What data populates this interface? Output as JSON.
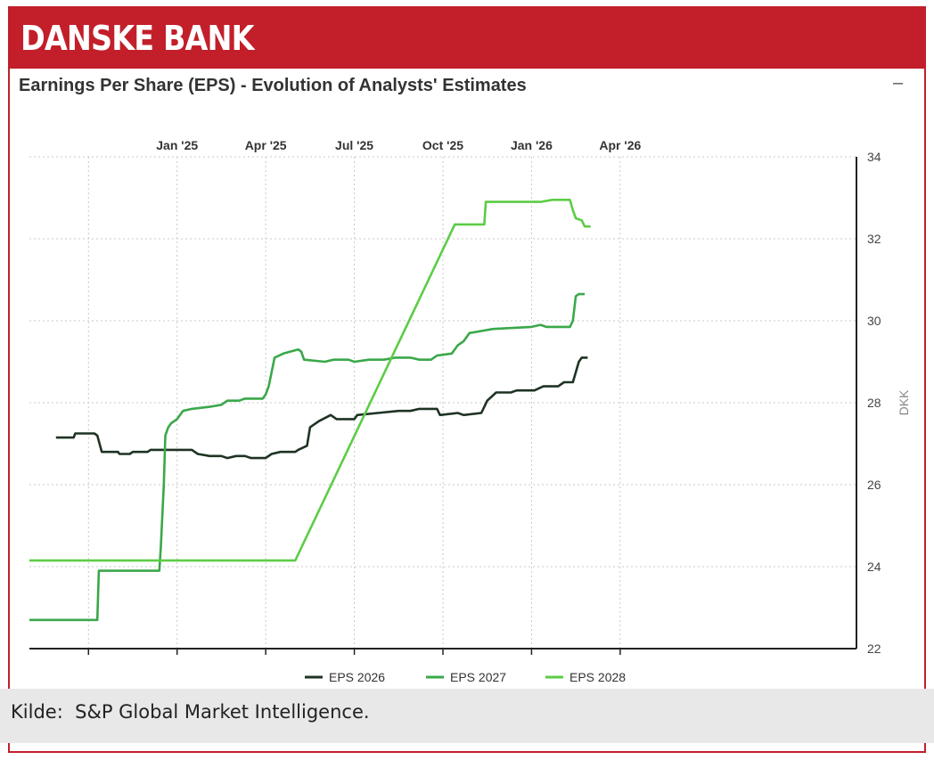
{
  "header": {
    "title": "DANSKE BANK"
  },
  "footer": {
    "source": "Kilde:  S&P Global Market Intelligence."
  },
  "colors": {
    "brand": "#c21f2a",
    "eps2026": "#1e3323",
    "eps2027": "#3aa84a",
    "eps2028": "#5ccc46"
  },
  "icons": {
    "minimize": "minimize-icon"
  },
  "chart_data": {
    "type": "line",
    "title": "Earnings Per Share (EPS) - Evolution of Analysts' Estimates",
    "ylabel": "DKK",
    "ylim": [
      22,
      34
    ],
    "yticks": [
      22,
      24,
      26,
      28,
      30,
      32,
      34
    ],
    "xlim": [
      -2.5,
      25.5
    ],
    "xticks": [
      {
        "label": "Jan '25",
        "at": 2.5
      },
      {
        "label": "Apr '25",
        "at": 5.5
      },
      {
        "label": "Jul '25",
        "at": 8.5
      },
      {
        "label": "Oct '25",
        "at": 11.5
      },
      {
        "label": "Jan '26",
        "at": 14.5
      },
      {
        "label": "Apr '26",
        "at": 17.5
      }
    ],
    "xgrid": [
      -0.5,
      2.5,
      5.5,
      8.5,
      11.5,
      14.5,
      17.5
    ],
    "legend_position": "bottom-center",
    "series": [
      {
        "name": "EPS 2026",
        "color": "#1e3323",
        "points": [
          [
            -1.6,
            27.15
          ],
          [
            -1.0,
            27.15
          ],
          [
            -0.95,
            27.25
          ],
          [
            -0.3,
            27.25
          ],
          [
            -0.2,
            27.2
          ],
          [
            -0.05,
            26.8
          ],
          [
            0.5,
            26.8
          ],
          [
            0.55,
            26.75
          ],
          [
            0.9,
            26.75
          ],
          [
            1.0,
            26.8
          ],
          [
            1.5,
            26.8
          ],
          [
            1.6,
            26.85
          ],
          [
            2.5,
            26.85
          ],
          [
            2.7,
            26.85
          ],
          [
            3.0,
            26.85
          ],
          [
            3.2,
            26.75
          ],
          [
            3.6,
            26.7
          ],
          [
            4.0,
            26.7
          ],
          [
            4.2,
            26.65
          ],
          [
            4.5,
            26.7
          ],
          [
            4.8,
            26.7
          ],
          [
            5.0,
            26.65
          ],
          [
            5.5,
            26.65
          ],
          [
            5.7,
            26.75
          ],
          [
            6.0,
            26.8
          ],
          [
            6.5,
            26.8
          ],
          [
            6.6,
            26.85
          ],
          [
            6.9,
            26.95
          ],
          [
            7.0,
            27.4
          ],
          [
            7.3,
            27.55
          ],
          [
            7.7,
            27.7
          ],
          [
            7.9,
            27.6
          ],
          [
            8.5,
            27.6
          ],
          [
            8.6,
            27.7
          ],
          [
            9.3,
            27.75
          ],
          [
            10.0,
            27.8
          ],
          [
            10.4,
            27.8
          ],
          [
            10.7,
            27.85
          ],
          [
            11.3,
            27.85
          ],
          [
            11.4,
            27.7
          ],
          [
            12.0,
            27.75
          ],
          [
            12.2,
            27.7
          ],
          [
            12.8,
            27.75
          ],
          [
            13.0,
            28.05
          ],
          [
            13.3,
            28.25
          ],
          [
            13.8,
            28.25
          ],
          [
            14.0,
            28.3
          ],
          [
            14.6,
            28.3
          ],
          [
            14.9,
            28.4
          ],
          [
            15.4,
            28.4
          ],
          [
            15.6,
            28.5
          ],
          [
            15.9,
            28.5
          ],
          [
            16.1,
            29.0
          ],
          [
            16.2,
            29.1
          ],
          [
            16.4,
            29.1
          ]
        ]
      },
      {
        "name": "EPS 2027",
        "color": "#3aa84a",
        "points": [
          [
            -2.5,
            22.7
          ],
          [
            -0.2,
            22.7
          ],
          [
            -0.15,
            23.9
          ],
          [
            1.9,
            23.9
          ],
          [
            1.95,
            24.5
          ],
          [
            2.05,
            26.0
          ],
          [
            2.1,
            27.2
          ],
          [
            2.2,
            27.4
          ],
          [
            2.3,
            27.5
          ],
          [
            2.5,
            27.6
          ],
          [
            2.7,
            27.8
          ],
          [
            3.0,
            27.85
          ],
          [
            3.6,
            27.9
          ],
          [
            4.0,
            27.95
          ],
          [
            4.2,
            28.05
          ],
          [
            4.6,
            28.05
          ],
          [
            4.8,
            28.1
          ],
          [
            5.4,
            28.1
          ],
          [
            5.5,
            28.2
          ],
          [
            5.6,
            28.4
          ],
          [
            5.7,
            28.75
          ],
          [
            5.8,
            29.1
          ],
          [
            6.1,
            29.2
          ],
          [
            6.6,
            29.3
          ],
          [
            6.7,
            29.25
          ],
          [
            6.8,
            29.05
          ],
          [
            7.5,
            29.0
          ],
          [
            7.8,
            29.05
          ],
          [
            8.3,
            29.05
          ],
          [
            8.5,
            29.0
          ],
          [
            9.0,
            29.05
          ],
          [
            9.5,
            29.05
          ],
          [
            9.9,
            29.1
          ],
          [
            10.4,
            29.1
          ],
          [
            10.7,
            29.05
          ],
          [
            11.1,
            29.05
          ],
          [
            11.3,
            29.15
          ],
          [
            11.8,
            29.2
          ],
          [
            12.0,
            29.4
          ],
          [
            12.2,
            29.5
          ],
          [
            12.4,
            29.7
          ],
          [
            12.8,
            29.75
          ],
          [
            13.2,
            29.8
          ],
          [
            14.5,
            29.85
          ],
          [
            14.8,
            29.9
          ],
          [
            15.0,
            29.85
          ],
          [
            15.8,
            29.85
          ],
          [
            15.9,
            30.0
          ],
          [
            16.0,
            30.6
          ],
          [
            16.1,
            30.65
          ],
          [
            16.3,
            30.65
          ]
        ]
      },
      {
        "name": "EPS 2028",
        "color": "#5ccc46",
        "points": [
          [
            -2.5,
            24.15
          ],
          [
            6.5,
            24.15
          ],
          [
            11.9,
            32.35
          ],
          [
            12.9,
            32.35
          ],
          [
            12.95,
            32.9
          ],
          [
            14.5,
            32.9
          ],
          [
            14.8,
            32.9
          ],
          [
            15.2,
            32.95
          ],
          [
            15.8,
            32.95
          ],
          [
            15.9,
            32.7
          ],
          [
            16.0,
            32.5
          ],
          [
            16.2,
            32.45
          ],
          [
            16.3,
            32.3
          ],
          [
            16.5,
            32.3
          ]
        ]
      }
    ]
  }
}
